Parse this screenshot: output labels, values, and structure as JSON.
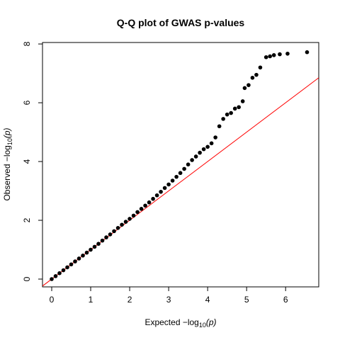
{
  "chart_data": {
    "type": "scatter",
    "title": "Q-Q plot of GWAS p-values",
    "xlabel": {
      "prefix": "Expected  −log",
      "sub": "10",
      "suffix": "(p)"
    },
    "ylabel": {
      "prefix": "Observed  −log",
      "sub": "10",
      "suffix": "(p)"
    },
    "x": [
      0,
      0.1,
      0.2,
      0.3,
      0.4,
      0.5,
      0.6,
      0.7,
      0.8,
      0.9,
      1.0,
      1.1,
      1.2,
      1.3,
      1.4,
      1.5,
      1.6,
      1.7,
      1.8,
      1.9,
      2.0,
      2.1,
      2.2,
      2.3,
      2.4,
      2.5,
      2.6,
      2.7,
      2.8,
      2.9,
      3.0,
      3.1,
      3.2,
      3.3,
      3.4,
      3.5,
      3.6,
      3.7,
      3.8,
      3.9,
      4.0,
      4.1,
      4.2,
      4.3,
      4.4,
      4.5,
      4.6,
      4.7,
      4.8,
      4.9,
      4.95,
      5.05,
      5.15,
      5.25,
      5.35,
      5.5,
      5.6,
      5.7,
      5.85,
      6.05,
      6.55
    ],
    "y": [
      0,
      0.1,
      0.2,
      0.3,
      0.4,
      0.5,
      0.6,
      0.7,
      0.8,
      0.9,
      1.0,
      1.1,
      1.2,
      1.31,
      1.42,
      1.52,
      1.63,
      1.74,
      1.85,
      1.95,
      2.05,
      2.16,
      2.28,
      2.39,
      2.5,
      2.61,
      2.73,
      2.85,
      2.97,
      3.1,
      3.22,
      3.35,
      3.48,
      3.61,
      3.75,
      3.9,
      4.05,
      4.17,
      4.3,
      4.42,
      4.5,
      4.62,
      4.82,
      5.2,
      5.45,
      5.6,
      5.65,
      5.8,
      5.85,
      6.05,
      6.5,
      6.6,
      6.85,
      6.95,
      7.2,
      7.55,
      7.58,
      7.62,
      7.65,
      7.67,
      7.72
    ],
    "color": "#000000",
    "reference_line": {
      "intercept": 0,
      "slope": 1,
      "color": "#ff0000"
    },
    "xlim": [
      -0.236,
      6.85
    ],
    "ylim": [
      -0.265,
      8.05
    ],
    "xticks": [
      0,
      1,
      2,
      3,
      4,
      5,
      6
    ],
    "yticks": [
      0,
      2,
      4,
      6,
      8
    ]
  }
}
